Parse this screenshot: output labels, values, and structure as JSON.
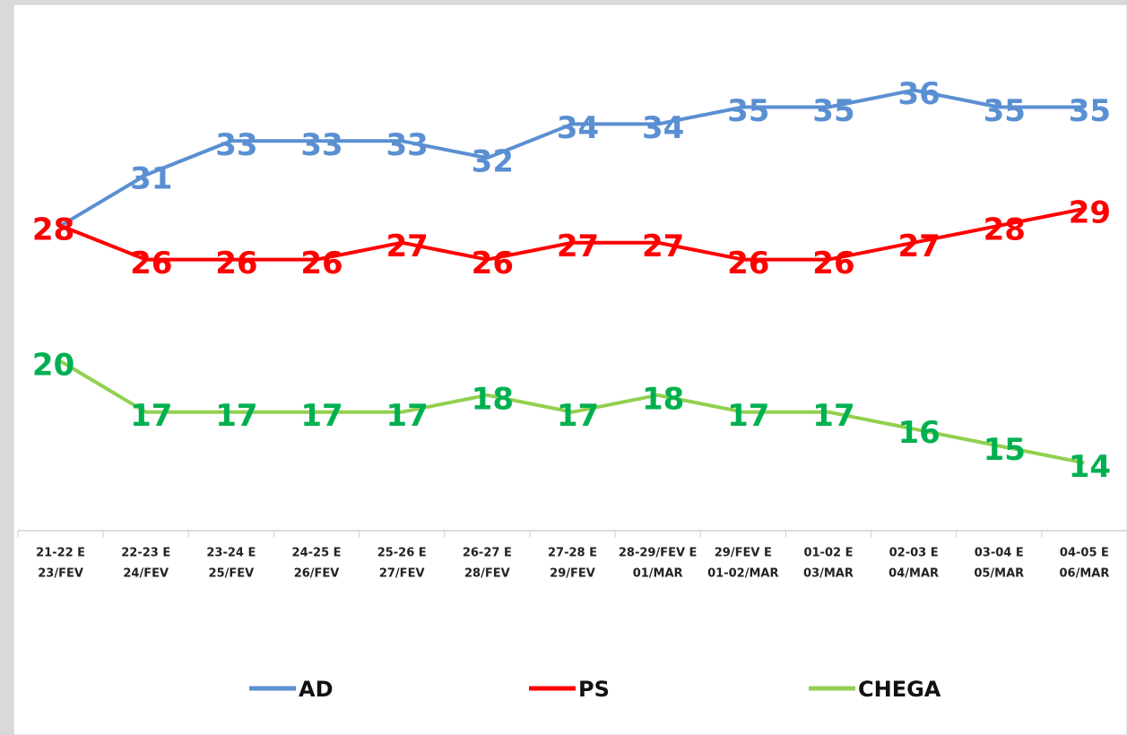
{
  "chart_data": {
    "type": "line",
    "categories": [
      [
        "21-22 E",
        "23/FEV"
      ],
      [
        "22-23 E",
        "24/FEV"
      ],
      [
        "23-24 E",
        "25/FEV"
      ],
      [
        "24-25 E",
        "26/FEV"
      ],
      [
        "25-26 E",
        "27/FEV"
      ],
      [
        "26-27 E",
        "28/FEV"
      ],
      [
        "27-28 E",
        "29/FEV"
      ],
      [
        "28-29/FEV E",
        "01/MAR"
      ],
      [
        "29/FEV E",
        "01-02/MAR"
      ],
      [
        "01-02 E",
        "03/MAR"
      ],
      [
        "02-03 E",
        "04/MAR"
      ],
      [
        "03-04 E",
        "05/MAR"
      ],
      [
        "04-05 E",
        "06/MAR"
      ]
    ],
    "series": [
      {
        "name": "AD",
        "color": "#5a8fd2",
        "label_color": "#5a8fd2",
        "values": [
          28,
          31,
          33,
          33,
          33,
          32,
          34,
          34,
          35,
          35,
          36,
          35,
          35
        ]
      },
      {
        "name": "PS",
        "color": "#ff0000",
        "label_color": "#ff0000",
        "values": [
          28,
          26,
          26,
          26,
          27,
          26,
          27,
          27,
          26,
          26,
          27,
          28,
          29
        ]
      },
      {
        "name": "CHEGA",
        "color": "#92d050",
        "label_color": "#00b050",
        "values": [
          20,
          17,
          17,
          17,
          17,
          18,
          17,
          18,
          17,
          17,
          16,
          15,
          14
        ]
      }
    ],
    "ylim": [
      10,
      40
    ],
    "legend": "bottom"
  }
}
